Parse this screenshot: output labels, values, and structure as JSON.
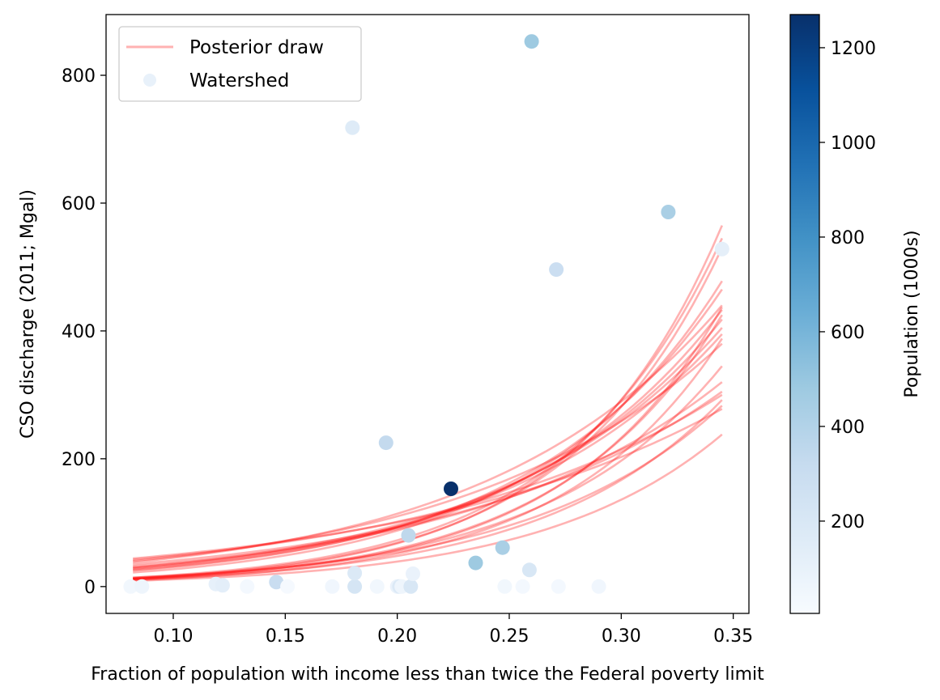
{
  "chart_data": {
    "type": "scatter",
    "xlabel": "Fraction of population with income less than twice the Federal poverty limit",
    "ylabel": "CSO discharge (2011; Mgal)",
    "xlim": [
      0.07,
      0.357
    ],
    "ylim": [
      -42,
      895
    ],
    "x_ticks": [
      "0.10",
      "0.15",
      "0.20",
      "0.25",
      "0.30",
      "0.35"
    ],
    "x_tick_values": [
      0.1,
      0.15,
      0.2,
      0.25,
      0.3,
      0.35
    ],
    "y_ticks": [
      "0",
      "200",
      "400",
      "600",
      "800"
    ],
    "y_tick_values": [
      0,
      200,
      400,
      600,
      800
    ],
    "grid": false,
    "legend": {
      "placement": "upper left",
      "entries": [
        {
          "label": "Posterior draw",
          "kind": "line",
          "color": "#ff0000"
        },
        {
          "label": "Watershed",
          "kind": "marker",
          "color": "#e8f1fa"
        }
      ]
    },
    "colorbar": {
      "label": "Population (1000s)",
      "min": 5,
      "max": 1270,
      "ticks": [
        "200",
        "400",
        "600",
        "800",
        "1000",
        "1200"
      ],
      "tick_values": [
        200,
        400,
        600,
        800,
        1000,
        1200
      ],
      "colormap": "Blues",
      "colormap_stops": [
        "#f7fbff",
        "#deebf7",
        "#c6dbef",
        "#9ecae1",
        "#6baed6",
        "#4292c6",
        "#2171b5",
        "#08519c",
        "#08306b"
      ]
    },
    "line_series": {
      "name": "Posterior draw",
      "color": "#ff0000",
      "opacity": 0.3,
      "x_range": [
        0.082,
        0.345
      ],
      "draws": [
        {
          "start": 12,
          "end": 565
        },
        {
          "start": 14,
          "end": 545
        },
        {
          "start": 13,
          "end": 530
        },
        {
          "start": 11,
          "end": 437
        },
        {
          "start": 12,
          "end": 425
        },
        {
          "start": 10,
          "end": 388
        },
        {
          "start": 13,
          "end": 345
        },
        {
          "start": 11,
          "end": 292
        },
        {
          "start": 14,
          "end": 283
        },
        {
          "start": 9,
          "end": 238
        },
        {
          "start": 22,
          "end": 478
        },
        {
          "start": 25,
          "end": 465
        },
        {
          "start": 26,
          "end": 433
        },
        {
          "start": 28,
          "end": 418
        },
        {
          "start": 30,
          "end": 405
        },
        {
          "start": 29,
          "end": 395
        },
        {
          "start": 32,
          "end": 320
        },
        {
          "start": 35,
          "end": 305
        },
        {
          "start": 38,
          "end": 440
        },
        {
          "start": 40,
          "end": 380
        },
        {
          "start": 42,
          "end": 300
        },
        {
          "start": 44,
          "end": 278
        }
      ]
    },
    "scatter_series": {
      "name": "Watershed",
      "points": [
        {
          "x": 0.081,
          "y": 0,
          "pop": 40
        },
        {
          "x": 0.086,
          "y": 0,
          "pop": 60
        },
        {
          "x": 0.119,
          "y": 4,
          "pop": 110
        },
        {
          "x": 0.122,
          "y": 2,
          "pop": 130
        },
        {
          "x": 0.133,
          "y": 0,
          "pop": 30
        },
        {
          "x": 0.146,
          "y": 7,
          "pop": 300
        },
        {
          "x": 0.151,
          "y": 0,
          "pop": 20
        },
        {
          "x": 0.171,
          "y": 0,
          "pop": 50
        },
        {
          "x": 0.18,
          "y": 718,
          "pop": 160
        },
        {
          "x": 0.181,
          "y": 0,
          "pop": 220
        },
        {
          "x": 0.181,
          "y": 21,
          "pop": 180
        },
        {
          "x": 0.191,
          "y": 0,
          "pop": 40
        },
        {
          "x": 0.195,
          "y": 225,
          "pop": 330
        },
        {
          "x": 0.2,
          "y": 0,
          "pop": 90
        },
        {
          "x": 0.201,
          "y": 0,
          "pop": 180
        },
        {
          "x": 0.202,
          "y": 0,
          "pop": 60
        },
        {
          "x": 0.205,
          "y": 80,
          "pop": 350
        },
        {
          "x": 0.206,
          "y": 0,
          "pop": 200
        },
        {
          "x": 0.207,
          "y": 20,
          "pop": 90
        },
        {
          "x": 0.224,
          "y": 153,
          "pop": 1270
        },
        {
          "x": 0.235,
          "y": 37,
          "pop": 480
        },
        {
          "x": 0.247,
          "y": 61,
          "pop": 430
        },
        {
          "x": 0.248,
          "y": 0,
          "pop": 40
        },
        {
          "x": 0.256,
          "y": 0,
          "pop": 30
        },
        {
          "x": 0.259,
          "y": 26,
          "pop": 200
        },
        {
          "x": 0.26,
          "y": 853,
          "pop": 480
        },
        {
          "x": 0.271,
          "y": 496,
          "pop": 290
        },
        {
          "x": 0.272,
          "y": 0,
          "pop": 30
        },
        {
          "x": 0.29,
          "y": 0,
          "pop": 50
        },
        {
          "x": 0.321,
          "y": 586,
          "pop": 430
        },
        {
          "x": 0.345,
          "y": 528,
          "pop": 120
        }
      ]
    }
  }
}
